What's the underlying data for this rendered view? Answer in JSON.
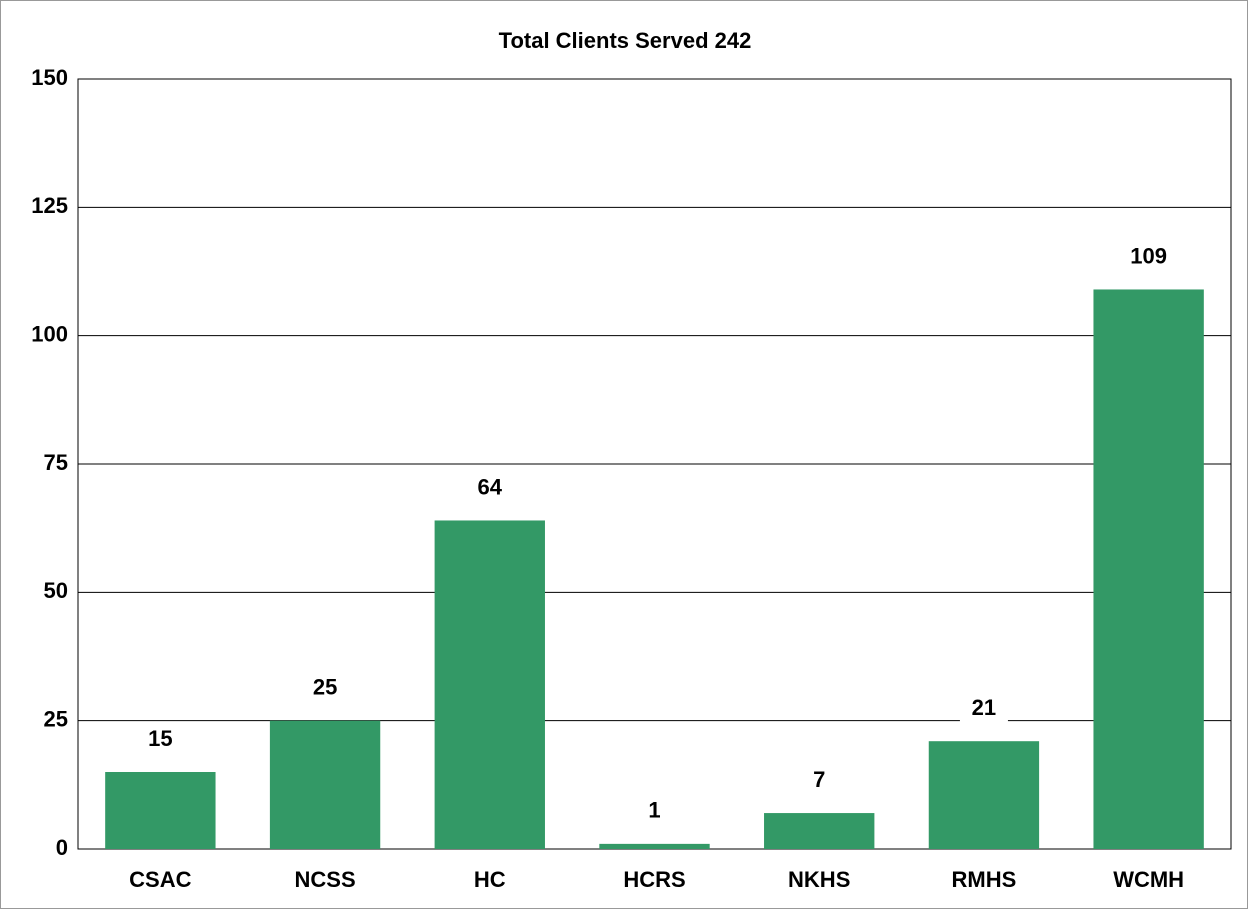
{
  "chart_data": {
    "type": "bar",
    "title": "Total Clients Served 242",
    "categories": [
      "CSAC",
      "NCSS",
      "HC",
      "HCRS",
      "NKHS",
      "RMHS",
      "WCMH"
    ],
    "values": [
      15,
      25,
      64,
      1,
      7,
      21,
      109
    ],
    "color": "#339966",
    "ylim": [
      0,
      150
    ],
    "yticks": [
      0,
      25,
      50,
      75,
      100,
      125,
      150
    ],
    "grid": true
  }
}
